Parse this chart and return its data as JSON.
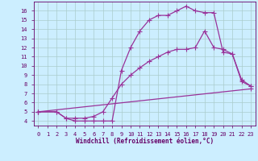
{
  "xlabel": "Windchill (Refroidissement éolien,°C)",
  "bg_color": "#cceeff",
  "grid_color": "#aacccc",
  "line_color": "#993399",
  "xlim": [
    -0.5,
    23.5
  ],
  "ylim": [
    3.5,
    17.0
  ],
  "xticks": [
    0,
    1,
    2,
    3,
    4,
    5,
    6,
    7,
    8,
    9,
    10,
    11,
    12,
    13,
    14,
    15,
    16,
    17,
    18,
    19,
    20,
    21,
    22,
    23
  ],
  "yticks": [
    4,
    5,
    6,
    7,
    8,
    9,
    10,
    11,
    12,
    13,
    14,
    15,
    16
  ],
  "line1_x": [
    0,
    2,
    3,
    4,
    5,
    6,
    7,
    8,
    9,
    10,
    11,
    12,
    13,
    14,
    15,
    16,
    17,
    18,
    19,
    20,
    21,
    22,
    23
  ],
  "line1_y": [
    5.0,
    5.0,
    4.3,
    4.0,
    4.0,
    4.0,
    4.0,
    4.0,
    9.5,
    12.0,
    13.8,
    15.0,
    15.5,
    15.5,
    16.0,
    16.5,
    16.0,
    15.8,
    15.8,
    11.5,
    11.3,
    8.3,
    7.8
  ],
  "line2_x": [
    0,
    2,
    3,
    4,
    5,
    6,
    7,
    8,
    9,
    10,
    11,
    12,
    13,
    14,
    15,
    16,
    17,
    18,
    19,
    20,
    21,
    22,
    23
  ],
  "line2_y": [
    5.0,
    5.0,
    4.3,
    4.3,
    4.3,
    4.5,
    5.0,
    6.5,
    8.0,
    9.0,
    9.8,
    10.5,
    11.0,
    11.5,
    11.8,
    11.8,
    12.0,
    13.8,
    12.0,
    11.8,
    11.3,
    8.5,
    7.8
  ],
  "line3_x": [
    0,
    23
  ],
  "line3_y": [
    5.0,
    7.5
  ]
}
